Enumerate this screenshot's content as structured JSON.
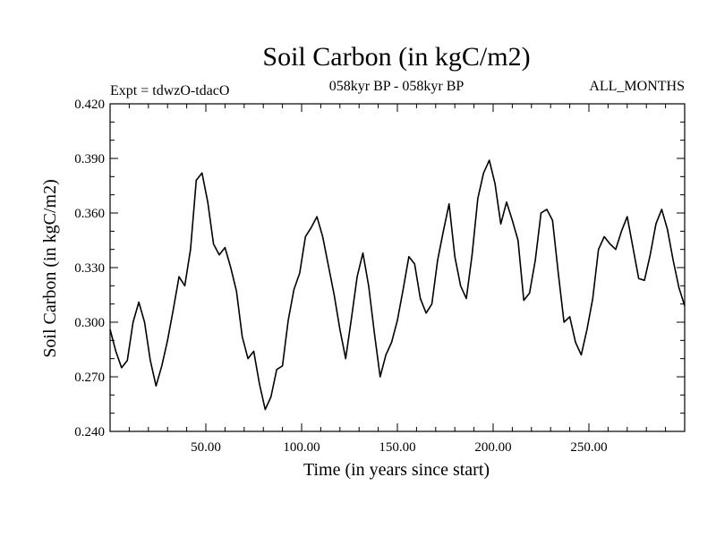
{
  "chart_data": {
    "type": "line",
    "title": "Soil Carbon (in kgC/m2)",
    "subtitle_left": "Expt = tdwzO-tdacO",
    "subtitle_center": "058kyr BP - 058kyr BP",
    "subtitle_right": "ALL_MONTHS",
    "xlabel": "Time (in years since start)",
    "ylabel": "Soil Carbon (in kgC/m2)",
    "xlim": [
      0,
      300
    ],
    "ylim": [
      0.24,
      0.42
    ],
    "xticks": [
      50,
      100,
      150,
      200,
      250
    ],
    "xtick_labels": [
      "50.00",
      "100.00",
      "150.00",
      "200.00",
      "250.00"
    ],
    "yticks": [
      0.24,
      0.27,
      0.3,
      0.33,
      0.36,
      0.39,
      0.42
    ],
    "ytick_labels": [
      "0.240",
      "0.270",
      "0.300",
      "0.330",
      "0.360",
      "0.390",
      "0.420"
    ],
    "grid": false,
    "line_color": "#000000",
    "series": [
      {
        "x": [
          0,
          3,
          6,
          9,
          12,
          15,
          18,
          21,
          24,
          27,
          30,
          33,
          36,
          39,
          42,
          45,
          48,
          51,
          54,
          57,
          60,
          63,
          66,
          69,
          72,
          75,
          78,
          81,
          84,
          87,
          90,
          93,
          96,
          99,
          102,
          105,
          108,
          111,
          114,
          117,
          120,
          123,
          126,
          129,
          132,
          135,
          138,
          141,
          144,
          147,
          150,
          153,
          156,
          159,
          162,
          165,
          168,
          171,
          174,
          177,
          180,
          183,
          186,
          189,
          192,
          195,
          198,
          201,
          204,
          207,
          210,
          213,
          216,
          219,
          222,
          225,
          228,
          231,
          234,
          237,
          240,
          243,
          246,
          249,
          252,
          255,
          258,
          261,
          264,
          267,
          270,
          273,
          276,
          279,
          282,
          285,
          288,
          291,
          294,
          297,
          300
        ],
        "y": [
          0.296,
          0.284,
          0.275,
          0.279,
          0.3,
          0.311,
          0.3,
          0.279,
          0.265,
          0.276,
          0.29,
          0.307,
          0.325,
          0.32,
          0.34,
          0.378,
          0.382,
          0.366,
          0.343,
          0.337,
          0.341,
          0.33,
          0.317,
          0.292,
          0.28,
          0.284,
          0.266,
          0.252,
          0.259,
          0.274,
          0.276,
          0.301,
          0.318,
          0.327,
          0.347,
          0.352,
          0.358,
          0.347,
          0.331,
          0.315,
          0.296,
          0.28,
          0.302,
          0.325,
          0.338,
          0.32,
          0.294,
          0.27,
          0.282,
          0.289,
          0.301,
          0.318,
          0.336,
          0.332,
          0.313,
          0.305,
          0.31,
          0.334,
          0.35,
          0.365,
          0.336,
          0.32,
          0.313,
          0.337,
          0.368,
          0.382,
          0.389,
          0.376,
          0.354,
          0.366,
          0.356,
          0.345,
          0.312,
          0.316,
          0.334,
          0.36,
          0.362,
          0.356,
          0.327,
          0.3,
          0.303,
          0.289,
          0.282,
          0.296,
          0.313,
          0.34,
          0.347,
          0.343,
          0.34,
          0.35,
          0.358,
          0.341,
          0.324,
          0.323,
          0.337,
          0.354,
          0.362,
          0.351,
          0.334,
          0.319,
          0.309
        ]
      }
    ]
  }
}
